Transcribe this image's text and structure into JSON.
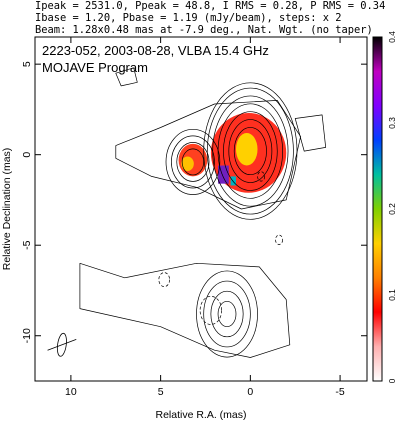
{
  "header": {
    "line1": "Ipeak = 2531.0, Ppeak = 48.8, I RMS = 0.28, P RMS = 0.34",
    "line2": "Ibase = 1.20, Pbase = 1.19 (mJy/beam), steps: x 2",
    "line3": "Beam: 1.28x0.48 mas at -7.9 deg., Nat. Wgt. (no taper)"
  },
  "annotation": {
    "line1": "2223-052, 2003-08-28, VLBA 15.4 GHz",
    "line2": "MOJAVE Program"
  },
  "chart_data": {
    "type": "contour",
    "xlabel": "Relative R.A. (mas)",
    "ylabel": "Relative Declination (mas)",
    "xlim": [
      12,
      -6.5
    ],
    "ylim": [
      -12.5,
      6.5
    ],
    "xticks": [
      10,
      5,
      0,
      -5
    ],
    "yticks": [
      5,
      0,
      -5,
      -10
    ],
    "colorbar": {
      "range": [
        0,
        0.4
      ],
      "ticks": [
        0,
        0.1,
        0.2,
        0.3,
        0.4
      ],
      "colors": [
        "#ffffff",
        "#ffb0b0",
        "#ff0000",
        "#ff8000",
        "#ffd000",
        "#80d000",
        "#00c0a0",
        "#0040ff",
        "#8000ff",
        "#c000c0",
        "#000000"
      ]
    },
    "total_intensity_contours": [
      {
        "center": [
          0,
          0.2
        ],
        "levels_rx": [
          0.9,
          1.2,
          1.5,
          1.8,
          2.1,
          2.4,
          2.6
        ],
        "aspect": 1.45
      },
      {
        "center": [
          3.2,
          -0.4
        ],
        "levels_rx": [
          0.6,
          0.9,
          1.2,
          1.5
        ],
        "aspect": 1.2
      },
      {
        "center": [
          1.3,
          -8.8
        ],
        "levels_rx": [
          0.5,
          0.9,
          1.3,
          1.7
        ],
        "aspect": 1.4
      }
    ],
    "polarization_peak": [
      0.2,
      0.3
    ],
    "beam": {
      "major": 1.28,
      "minor": 0.48,
      "pa": -7.9,
      "position": [
        10.5,
        -10.5
      ]
    }
  }
}
